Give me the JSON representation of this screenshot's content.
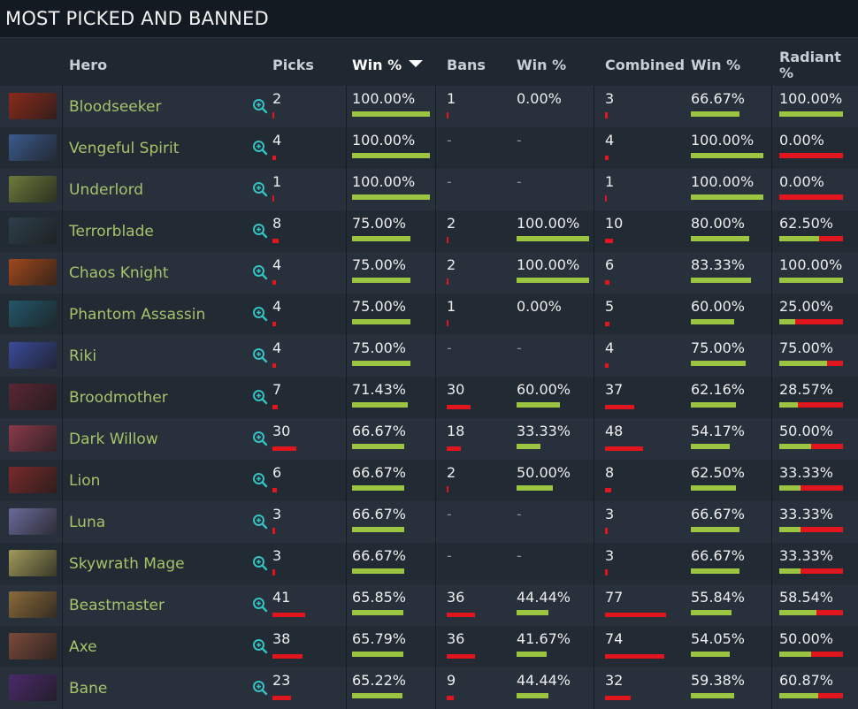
{
  "title": "MOST PICKED AND BANNED",
  "colors": {
    "win_bar": "#9bc440",
    "loss_bar": "#e0151d",
    "hero_name": "#a8c26a"
  },
  "headers": {
    "hero": "Hero",
    "picks": "Picks",
    "win": "Win %",
    "bans": "Bans",
    "ban_win": "Win %",
    "combined": "Combined",
    "combined_win": "Win %",
    "radiant_line1": "Radiant",
    "radiant_line2": "%"
  },
  "rows": [
    {
      "hero": "Bloodseeker",
      "picks": "2",
      "win": "100.00%",
      "win_frac": 1.0,
      "bans": "1",
      "ban_win": "0.00%",
      "ban_frac": 0.0,
      "combined": "3",
      "comb_win": "66.67%",
      "comb_frac": 0.6667,
      "radiant": "100.00%",
      "rad_frac": 1.0,
      "avatar": "#8a2a1c"
    },
    {
      "hero": "Vengeful Spirit",
      "picks": "4",
      "win": "100.00%",
      "win_frac": 1.0,
      "bans": "-",
      "ban_win": "-",
      "ban_frac": null,
      "combined": "4",
      "comb_win": "100.00%",
      "comb_frac": 1.0,
      "radiant": "0.00%",
      "rad_frac": 0.0,
      "avatar": "#3c5a8c"
    },
    {
      "hero": "Underlord",
      "picks": "1",
      "win": "100.00%",
      "win_frac": 1.0,
      "bans": "-",
      "ban_win": "-",
      "ban_frac": null,
      "combined": "1",
      "comb_win": "100.00%",
      "comb_frac": 1.0,
      "radiant": "0.00%",
      "rad_frac": 0.0,
      "avatar": "#6c7a3a"
    },
    {
      "hero": "Terrorblade",
      "picks": "8",
      "win": "75.00%",
      "win_frac": 0.75,
      "bans": "2",
      "ban_win": "100.00%",
      "ban_frac": 1.0,
      "combined": "10",
      "comb_win": "80.00%",
      "comb_frac": 0.8,
      "radiant": "62.50%",
      "rad_frac": 0.625,
      "avatar": "#2d3f4a"
    },
    {
      "hero": "Chaos Knight",
      "picks": "4",
      "win": "75.00%",
      "win_frac": 0.75,
      "bans": "2",
      "ban_win": "100.00%",
      "ban_frac": 1.0,
      "combined": "6",
      "comb_win": "83.33%",
      "comb_frac": 0.8333,
      "radiant": "100.00%",
      "rad_frac": 1.0,
      "avatar": "#a0481c"
    },
    {
      "hero": "Phantom Assassin",
      "picks": "4",
      "win": "75.00%",
      "win_frac": 0.75,
      "bans": "1",
      "ban_win": "0.00%",
      "ban_frac": 0.0,
      "combined": "5",
      "comb_win": "60.00%",
      "comb_frac": 0.6,
      "radiant": "25.00%",
      "rad_frac": 0.25,
      "avatar": "#24566a"
    },
    {
      "hero": "Riki",
      "picks": "4",
      "win": "75.00%",
      "win_frac": 0.75,
      "bans": "-",
      "ban_win": "-",
      "ban_frac": null,
      "combined": "4",
      "comb_win": "75.00%",
      "comb_frac": 0.75,
      "radiant": "75.00%",
      "rad_frac": 0.75,
      "avatar": "#3a4a9a"
    },
    {
      "hero": "Broodmother",
      "picks": "7",
      "win": "71.43%",
      "win_frac": 0.7143,
      "bans": "30",
      "ban_win": "60.00%",
      "ban_frac": 0.6,
      "combined": "37",
      "comb_win": "62.16%",
      "comb_frac": 0.6216,
      "radiant": "28.57%",
      "rad_frac": 0.2857,
      "avatar": "#5a2634"
    },
    {
      "hero": "Dark Willow",
      "picks": "30",
      "win": "66.67%",
      "win_frac": 0.6667,
      "bans": "18",
      "ban_win": "33.33%",
      "ban_frac": 0.3333,
      "combined": "48",
      "comb_win": "54.17%",
      "comb_frac": 0.5417,
      "radiant": "50.00%",
      "rad_frac": 0.5,
      "avatar": "#8a3a4a"
    },
    {
      "hero": "Lion",
      "picks": "6",
      "win": "66.67%",
      "win_frac": 0.6667,
      "bans": "2",
      "ban_win": "50.00%",
      "ban_frac": 0.5,
      "combined": "8",
      "comb_win": "62.50%",
      "comb_frac": 0.625,
      "radiant": "33.33%",
      "rad_frac": 0.3333,
      "avatar": "#7a2a2a"
    },
    {
      "hero": "Luna",
      "picks": "3",
      "win": "66.67%",
      "win_frac": 0.6667,
      "bans": "-",
      "ban_win": "-",
      "ban_frac": null,
      "combined": "3",
      "comb_win": "66.67%",
      "comb_frac": 0.6667,
      "radiant": "33.33%",
      "rad_frac": 0.3333,
      "avatar": "#6a6a9a"
    },
    {
      "hero": "Skywrath Mage",
      "picks": "3",
      "win": "66.67%",
      "win_frac": 0.6667,
      "bans": "-",
      "ban_win": "-",
      "ban_frac": null,
      "combined": "3",
      "comb_win": "66.67%",
      "comb_frac": 0.6667,
      "radiant": "33.33%",
      "rad_frac": 0.3333,
      "avatar": "#a09a5a"
    },
    {
      "hero": "Beastmaster",
      "picks": "41",
      "win": "65.85%",
      "win_frac": 0.6585,
      "bans": "36",
      "ban_win": "44.44%",
      "ban_frac": 0.4444,
      "combined": "77",
      "comb_win": "55.84%",
      "comb_frac": 0.5584,
      "radiant": "58.54%",
      "rad_frac": 0.5854,
      "avatar": "#8a6a3a"
    },
    {
      "hero": "Axe",
      "picks": "38",
      "win": "65.79%",
      "win_frac": 0.6579,
      "bans": "36",
      "ban_win": "41.67%",
      "ban_frac": 0.4167,
      "combined": "74",
      "comb_win": "54.05%",
      "comb_frac": 0.5405,
      "radiant": "50.00%",
      "rad_frac": 0.5,
      "avatar": "#7a4a3a"
    },
    {
      "hero": "Bane",
      "picks": "23",
      "win": "65.22%",
      "win_frac": 0.6522,
      "bans": "9",
      "ban_win": "44.44%",
      "ban_frac": 0.4444,
      "combined": "32",
      "comb_win": "59.38%",
      "comb_frac": 0.5938,
      "radiant": "60.87%",
      "rad_frac": 0.6087,
      "avatar": "#4a2a6a"
    }
  ]
}
